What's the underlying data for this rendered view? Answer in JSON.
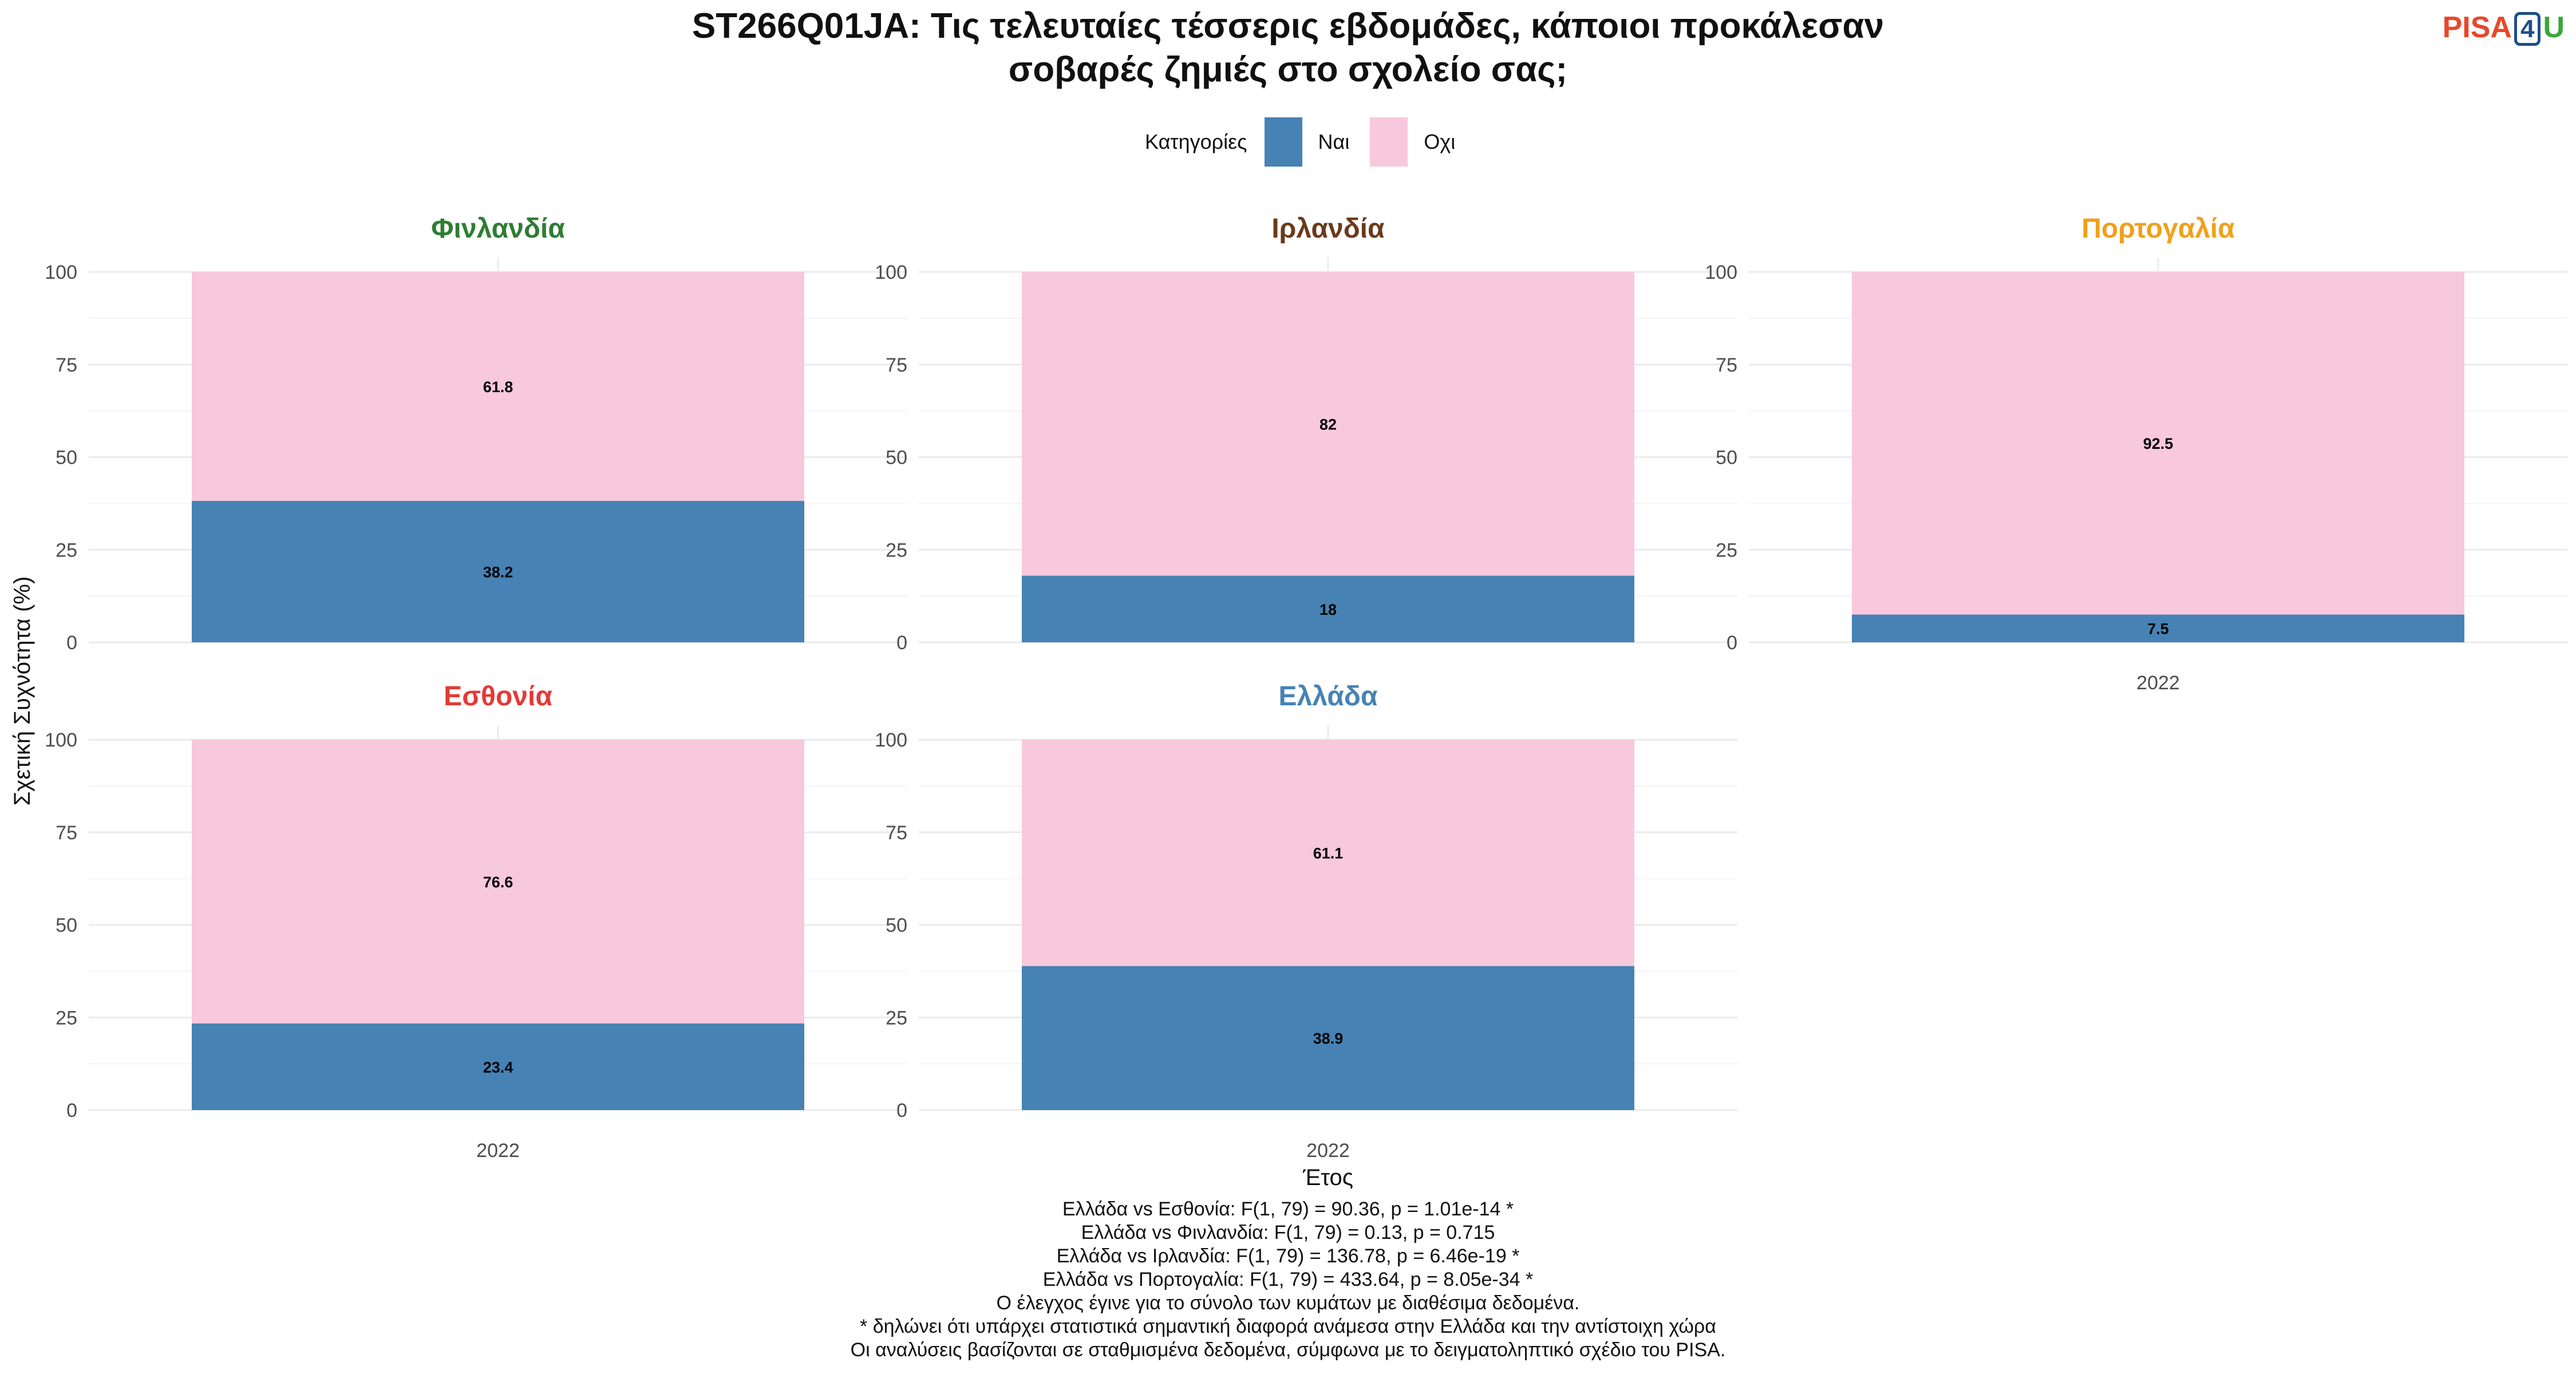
{
  "title_line1": "ST266Q01JA: Τις τελευταίες τέσσερις εβδομάδες, κάποιοι προκάλεσαν",
  "title_line2": "σοβαρές ζημιές στο σχολείο σας;",
  "logo": {
    "part1": "PISA",
    "part2": "4",
    "part3": "U"
  },
  "legend": {
    "title": "Κατηγορίες",
    "yes": "Ναι",
    "no": "Οχι"
  },
  "colors": {
    "yes": "#4682b4",
    "no": "#f8c8dc",
    "grid": "#ebebeb"
  },
  "chart_data": {
    "type": "bar",
    "stacked": true,
    "ylabel": "Σχετική Συχνότητα (%)",
    "xlabel": "Έτος",
    "ylim": [
      0,
      100
    ],
    "yticks": [
      0,
      25,
      50,
      75,
      100
    ],
    "categories": [
      "2022"
    ],
    "panels": [
      {
        "country": "Φινλανδία",
        "color": "#2e7d32",
        "year": "2022",
        "yes": 38.2,
        "no": 61.8,
        "yes_label": "38.2",
        "no_label": "61.8"
      },
      {
        "country": "Ιρλανδία",
        "color": "#6b3a1a",
        "year": "2022",
        "yes": 18,
        "no": 82,
        "yes_label": "18",
        "no_label": "82"
      },
      {
        "country": "Πορτογαλία",
        "color": "#f0a01a",
        "year": "2022",
        "yes": 7.5,
        "no": 92.5,
        "yes_label": "7.5",
        "no_label": "92.5"
      },
      {
        "country": "Εσθονία",
        "color": "#e53935",
        "year": "2022",
        "yes": 23.4,
        "no": 76.6,
        "yes_label": "23.4",
        "no_label": "76.6"
      },
      {
        "country": "Ελλάδα",
        "color": "#4682b4",
        "year": "2022",
        "yes": 38.9,
        "no": 61.1,
        "yes_label": "38.9",
        "no_label": "61.1"
      }
    ]
  },
  "notes": [
    "Ελλάδα vs Εσθονία: F(1, 79) = 90.36, p = 1.01e-14 *",
    "Ελλάδα vs Φινλανδία: F(1, 79) = 0.13, p = 0.715",
    "Ελλάδα vs Ιρλανδία: F(1, 79) = 136.78, p = 6.46e-19 *",
    "Ελλάδα vs Πορτογαλία: F(1, 79) = 433.64, p = 8.05e-34 *",
    "Ο έλεγχος έγινε για το σύνολο των κυμάτων με διαθέσιμα δεδομένα.",
    "* δηλώνει ότι υπάρχει στατιστικά σημαντική διαφορά ανάμεσα στην Ελλάδα και την αντίστοιχη χώρα",
    "Οι αναλύσεις βασίζονται σε σταθμισμένα δεδομένα, σύμφωνα με το δειγματοληπτικό σχέδιο του PISA."
  ]
}
